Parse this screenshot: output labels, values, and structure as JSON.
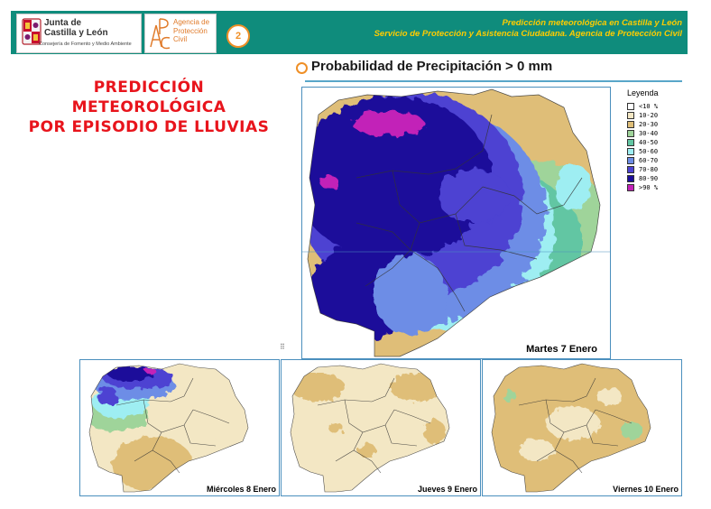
{
  "header": {
    "logo_jcyl": {
      "line1": "Junta de",
      "line2": "Castilla y León",
      "line3": "Consejería de Fomento y Medio Ambiente"
    },
    "logo_apc": {
      "lines": [
        "Agencia de",
        "Protección",
        "Civil"
      ]
    },
    "page_number": "2",
    "title": "Predicción meteorológica en Castilla y León",
    "subtitle": "Servicio de Protección y Asistencia Ciudadana. Agencia de Protección Civil",
    "bar_color": "#0f8c7c",
    "text_color": "#ffcc00"
  },
  "page_title": {
    "lines": [
      "PREDICCIÓN",
      "METEOROLÓGICA",
      "POR EPISODIO DE LLUVIAS"
    ],
    "color": "#e8141c"
  },
  "section": {
    "title": "Probabilidad de Precipitación > 0 mm"
  },
  "legend": {
    "title": "Leyenda",
    "items": [
      {
        "label": "<10 %",
        "color": "#ffffff"
      },
      {
        "label": "10-20",
        "color": "#f3e7c4"
      },
      {
        "label": "20-30",
        "color": "#dfbe78"
      },
      {
        "label": "30-40",
        "color": "#9fd49a"
      },
      {
        "label": "40-50",
        "color": "#62c6a3"
      },
      {
        "label": "50-60",
        "color": "#9eeef2"
      },
      {
        "label": "60-70",
        "color": "#6d8de6"
      },
      {
        "label": "70-80",
        "color": "#4d42d2"
      },
      {
        "label": "80-90",
        "color": "#1c0d9a"
      },
      {
        "label": ">90 %",
        "color": "#c221b8"
      }
    ]
  },
  "maps": {
    "main": {
      "day_label": "Martes 7 Enero"
    },
    "small": [
      {
        "day_label": "Miércoles 8 Enero"
      },
      {
        "day_label": "Jueves 9 Enero"
      },
      {
        "day_label": "Viernes 10 Enero"
      }
    ]
  }
}
